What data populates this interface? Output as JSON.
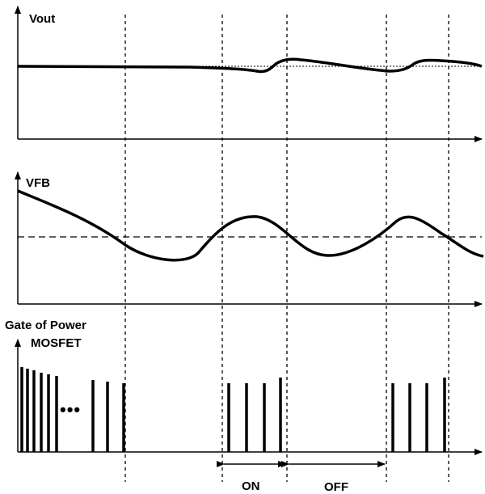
{
  "panels": {
    "vout": {
      "label": "Vout"
    },
    "vfb": {
      "label": "VFB"
    },
    "gate": {
      "label_line1": "Gate of Power",
      "label_line2": "MOSFET"
    }
  },
  "ellipsis": "•••",
  "intervals": {
    "on": "ON",
    "off": "OFF"
  },
  "colors": {
    "stroke": "#000000",
    "background": "#ffffff"
  }
}
